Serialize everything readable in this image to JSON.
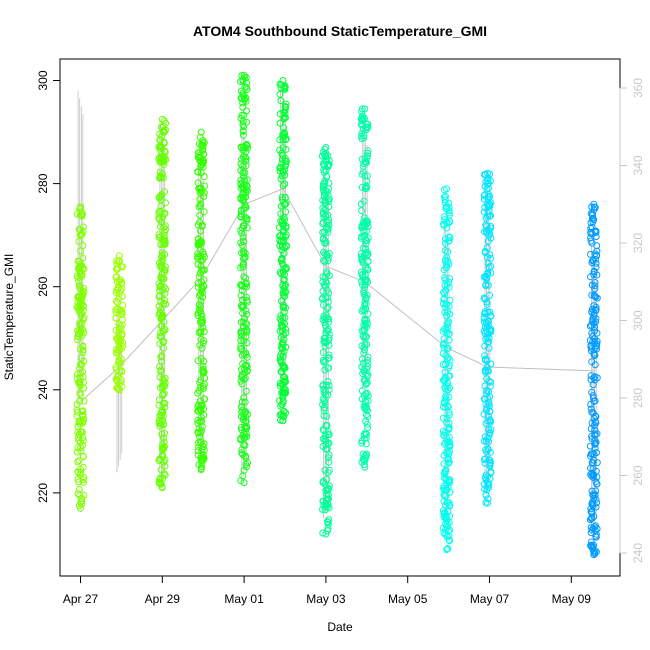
{
  "chart_data": {
    "type": "scatter",
    "title": "ATOM4 Southbound StaticTemperature_GMI",
    "xlabel": "Date",
    "ylabel": "StaticTemperature_GMI",
    "x_unit": "days",
    "x_ticks": [
      {
        "day": 0,
        "label": "Apr 27"
      },
      {
        "day": 2,
        "label": "Apr 29"
      },
      {
        "day": 4,
        "label": "May 01"
      },
      {
        "day": 6,
        "label": "May 03"
      },
      {
        "day": 8,
        "label": "May 05"
      },
      {
        "day": 10,
        "label": "May 07"
      },
      {
        "day": 12,
        "label": "May 09"
      }
    ],
    "xlim": [
      -0.45,
      13.2
    ],
    "ylim": [
      205,
      301
    ],
    "y_ticks": [
      220,
      240,
      260,
      280,
      300
    ],
    "y_right_ticks": [
      240,
      260,
      280,
      300,
      320,
      340,
      360
    ],
    "y_right_lim": [
      236.6,
      364.6
    ],
    "grid": false,
    "marker": "open-circle",
    "columns": [
      {
        "day": 0.0,
        "min": 217,
        "max": 275.5,
        "color": "#7fff00",
        "profile_top": 298,
        "profile_bottom": 237
      },
      {
        "day": 0.95,
        "min": 240,
        "max": 266,
        "color": "#9aff00",
        "profile_top": 255,
        "profile_bottom": 224
      },
      {
        "day": 2.0,
        "min": 221,
        "max": 292.5,
        "color": "#66ff00",
        "profile_top": 292,
        "profile_bottom": 221
      },
      {
        "day": 2.95,
        "min": 224.5,
        "max": 290,
        "color": "#33ff00",
        "profile_top": 285,
        "profile_bottom": 224
      },
      {
        "day": 4.0,
        "min": 222,
        "max": 301,
        "color": "#1aff1a",
        "profile_top": 292,
        "profile_bottom": 222
      },
      {
        "day": 4.95,
        "min": 234,
        "max": 300,
        "color": "#00ff33",
        "profile_top": 299,
        "profile_bottom": 236
      },
      {
        "day": 6.0,
        "min": 212,
        "max": 287,
        "color": "#00ff99",
        "profile_top": 283,
        "profile_bottom": 215
      },
      {
        "day": 6.95,
        "min": 225,
        "max": 294.5,
        "color": "#00ffaa",
        "profile_top": 292,
        "profile_bottom": 240
      },
      {
        "day": 8.95,
        "min": 209,
        "max": 279,
        "color": "#00ffee",
        "profile_top": 273,
        "profile_bottom": 215
      },
      {
        "day": 9.95,
        "min": 218,
        "max": 282,
        "color": "#00e5ff",
        "profile_top": 277,
        "profile_bottom": 220
      },
      {
        "day": 12.55,
        "min": 208,
        "max": 276,
        "color": "#009bff",
        "profile_top": 268,
        "profile_bottom": 212
      }
    ],
    "profile_line": {
      "color": "#c0c0c0",
      "right_axis_points": [
        {
          "day": 0.0,
          "value": 279
        },
        {
          "day": 0.95,
          "value": 288
        },
        {
          "day": 2.0,
          "value": 300
        },
        {
          "day": 2.95,
          "value": 311
        },
        {
          "day": 4.0,
          "value": 330
        },
        {
          "day": 4.95,
          "value": 334
        },
        {
          "day": 6.0,
          "value": 314
        },
        {
          "day": 6.95,
          "value": 310
        },
        {
          "day": 8.95,
          "value": 293
        },
        {
          "day": 9.95,
          "value": 288
        },
        {
          "day": 12.55,
          "value": 287
        }
      ]
    }
  }
}
